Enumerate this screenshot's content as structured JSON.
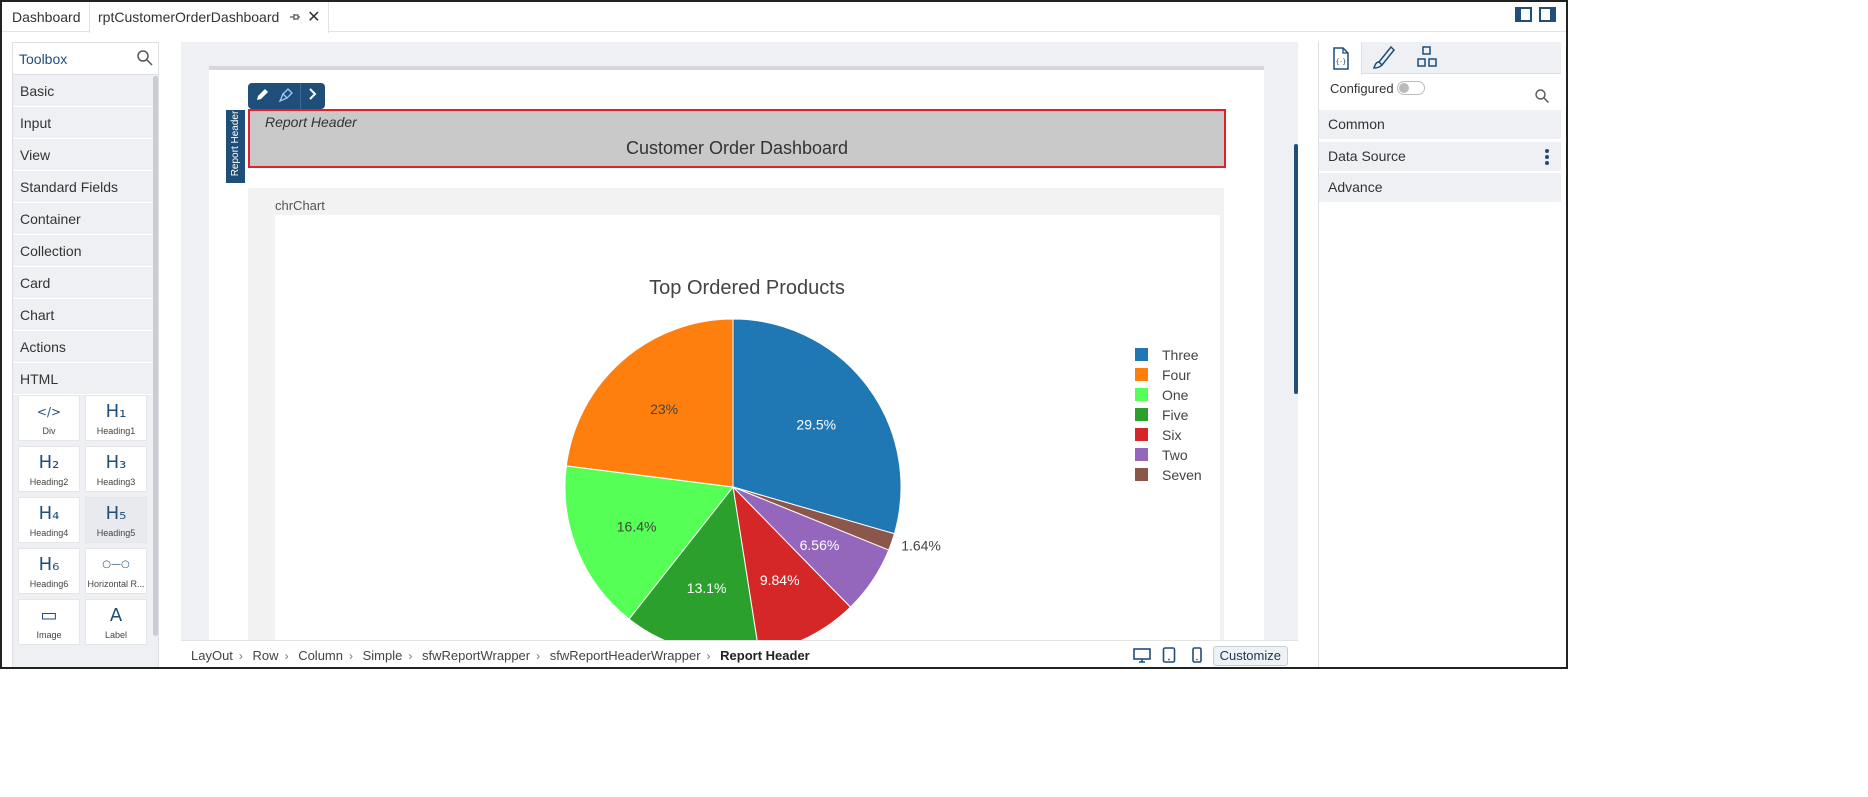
{
  "tabs": [
    {
      "label": "Dashboard"
    },
    {
      "label": "rptCustomerOrderDashboard"
    }
  ],
  "toolbox": {
    "title": "Toolbox",
    "categories": [
      "Basic",
      "Input",
      "View",
      "Standard Fields",
      "Container",
      "Collection",
      "Card",
      "Chart",
      "Actions",
      "HTML"
    ],
    "widgets": [
      {
        "glyph": "</>",
        "label": "Div"
      },
      {
        "glyph": "H₁",
        "label": "Heading1"
      },
      {
        "glyph": "H₂",
        "label": "Heading2"
      },
      {
        "glyph": "H₃",
        "label": "Heading3"
      },
      {
        "glyph": "H₄",
        "label": "Heading4"
      },
      {
        "glyph": "H₅",
        "label": "Heading5"
      },
      {
        "glyph": "H₆",
        "label": "Heading6"
      },
      {
        "glyph": "○—○",
        "label": "Horizontal R..."
      },
      {
        "glyph": "▭",
        "label": "Image"
      },
      {
        "glyph": "A",
        "label": "Label"
      }
    ]
  },
  "canvas": {
    "report_header_tag": "Report Header",
    "report_header_label": "Report Header",
    "report_title": "Customer Order Dashboard",
    "chart_component_name": "chrChart"
  },
  "chart_data": {
    "type": "pie",
    "title": "Top Ordered Products",
    "legend_position": "right",
    "slices": [
      {
        "name": "Three",
        "value": 29.5,
        "label": "29.5%",
        "color": "#1f77b4"
      },
      {
        "name": "Seven",
        "value": 1.64,
        "label": "1.64%",
        "color": "#8c564b"
      },
      {
        "name": "Two",
        "value": 6.56,
        "label": "6.56%",
        "color": "#9467bd"
      },
      {
        "name": "Six",
        "value": 9.84,
        "label": "9.84%",
        "color": "#d62728"
      },
      {
        "name": "Five",
        "value": 13.1,
        "label": "13.1%",
        "color": "#2ca02c"
      },
      {
        "name": "One",
        "value": 16.4,
        "label": "16.4%",
        "color": "#55ff55"
      },
      {
        "name": "Four",
        "value": 23.0,
        "label": "23%",
        "color": "#ff7f0e"
      }
    ],
    "legend": [
      "Three",
      "Four",
      "One",
      "Five",
      "Six",
      "Two",
      "Seven"
    ]
  },
  "breadcrumb": [
    "LayOut",
    "Row",
    "Column",
    "Simple",
    "sfwReportWrapper",
    "sfwReportHeaderWrapper",
    "Report Header"
  ],
  "bottom": {
    "customize_label": "Customize"
  },
  "right_panel": {
    "configured_label": "Configured",
    "configured_on": false,
    "sections": [
      "Common",
      "Data Source",
      "Advance"
    ]
  },
  "colors": {
    "accent": "#1f4e79",
    "selection_border": "#e0202a"
  }
}
